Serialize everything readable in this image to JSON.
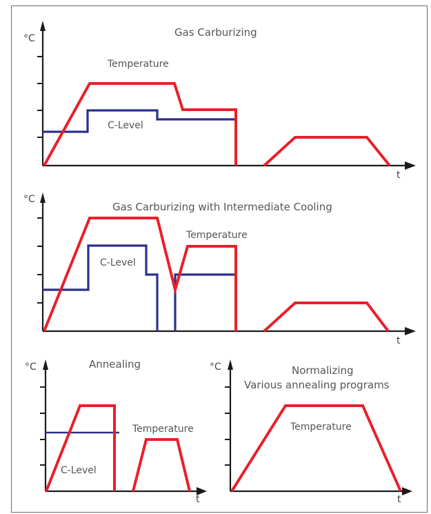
{
  "colors": {
    "temperature": "#e8202a",
    "c_level": "#2b2f8f",
    "axis": "#1a1a1a",
    "text": "#555555"
  },
  "axis_labels": {
    "y": "°C",
    "x": "t"
  },
  "panels": {
    "gas_carburizing": {
      "title": "Gas Carburizing",
      "temperature_label": "Temperature",
      "c_level_label": "C-Level"
    },
    "intermediate_cooling": {
      "title": "Gas Carburizing with Intermediate Cooling",
      "temperature_label": "Temperature",
      "c_level_label": "C-Level"
    },
    "annealing": {
      "title": "Annealing",
      "temperature_label": "Temperature",
      "c_level_label": "C-Level"
    },
    "normalizing": {
      "title": "Normalizing",
      "subtitle": "Various annealing programs",
      "temperature_label": "Temperature"
    }
  }
}
